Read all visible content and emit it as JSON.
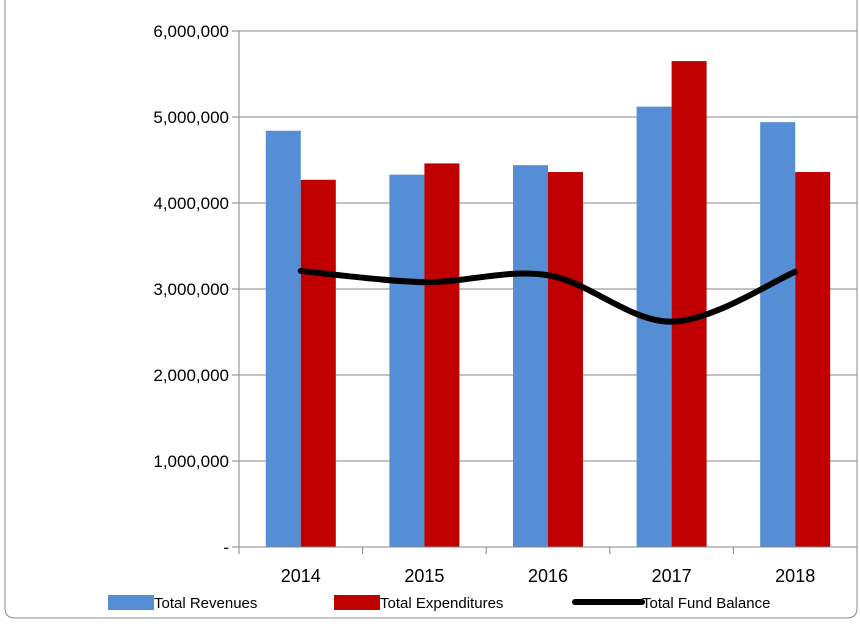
{
  "chart_data": {
    "type": "bar",
    "title": "",
    "xlabel": "",
    "ylabel": "",
    "categories": [
      "2014",
      "2015",
      "2016",
      "2017",
      "2018"
    ],
    "ylim": [
      0,
      6000000
    ],
    "yticks": [
      0,
      1000000,
      2000000,
      3000000,
      4000000,
      5000000,
      6000000
    ],
    "ytick_labels": [
      "-",
      "1,000,000",
      "2,000,000",
      "3,000,000",
      "4,000,000",
      "5,000,000",
      "6,000,000"
    ],
    "grid": "horizontal",
    "legend_position": "bottom",
    "series": [
      {
        "name": "Total Revenues",
        "type": "bar",
        "color": "#558ED5",
        "values": [
          4840000,
          4330000,
          4440000,
          5120000,
          4940000
        ]
      },
      {
        "name": "Total Expenditures",
        "type": "bar",
        "color": "#C00000",
        "values": [
          4270000,
          4460000,
          4360000,
          5650000,
          4360000
        ]
      },
      {
        "name": "Total Fund Balance",
        "type": "line",
        "smooth": true,
        "color": "#000000",
        "values": [
          3210000,
          3080000,
          3160000,
          2620000,
          3200000
        ]
      }
    ]
  }
}
